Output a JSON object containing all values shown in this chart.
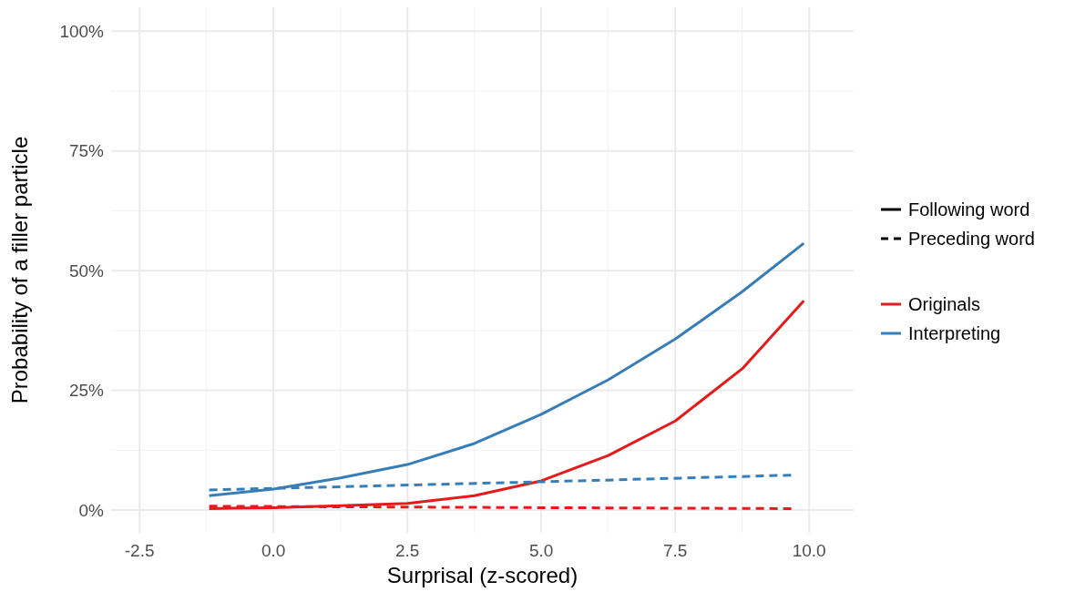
{
  "chart_data": {
    "type": "line",
    "xlabel": "Surprisal (z-scored)",
    "ylabel": "Probability of a filler particle",
    "xlim": [
      -3.03,
      10.83
    ],
    "ylim": [
      -4.75,
      105
    ],
    "xticks": [
      {
        "value": -2.5,
        "label": "-2.5"
      },
      {
        "value": 0,
        "label": "0.0"
      },
      {
        "value": 2.5,
        "label": "2.5"
      },
      {
        "value": 5,
        "label": "5.0"
      },
      {
        "value": 7.5,
        "label": "7.5"
      },
      {
        "value": 10,
        "label": "10.0"
      }
    ],
    "yticks": [
      {
        "value": 0,
        "label": "0%"
      },
      {
        "value": 25,
        "label": "25%"
      },
      {
        "value": 50,
        "label": "50%"
      },
      {
        "value": 75,
        "label": "75%"
      },
      {
        "value": 100,
        "label": "100%"
      }
    ],
    "grid": true,
    "legend": "right",
    "annotations": [
      "Following word",
      "Preceding word"
    ],
    "series": [
      {
        "name": "Originals",
        "color": "#e41a1c",
        "line_style": "solid",
        "x": [
          -1.2,
          0,
          1.25,
          2.5,
          3.75,
          5,
          6.25,
          7.5,
          8.75,
          9.9
        ],
        "values": [
          0.3,
          0.5,
          0.9,
          1.4,
          3,
          6.1,
          11.4,
          18.6,
          29.5,
          43.7
        ]
      },
      {
        "name": "Interpreting",
        "color": "#377eb8",
        "line_style": "solid",
        "x": [
          -1.2,
          0,
          1.25,
          2.5,
          3.75,
          5,
          6.25,
          7.5,
          8.75,
          9.9
        ],
        "values": [
          3,
          4.4,
          6.7,
          9.5,
          13.9,
          20,
          27.2,
          35.7,
          45.6,
          55.7
        ]
      },
      {
        "color": "#e41a1c",
        "line_style": "dashed",
        "x": [
          -1.2,
          5,
          9.7
        ],
        "values": [
          0.8,
          0.5,
          0.3
        ]
      },
      {
        "color": "#377eb8",
        "line_style": "dashed",
        "x": [
          -1.2,
          5,
          9.7
        ],
        "values": [
          4.2,
          5.9,
          7.3
        ]
      }
    ]
  }
}
